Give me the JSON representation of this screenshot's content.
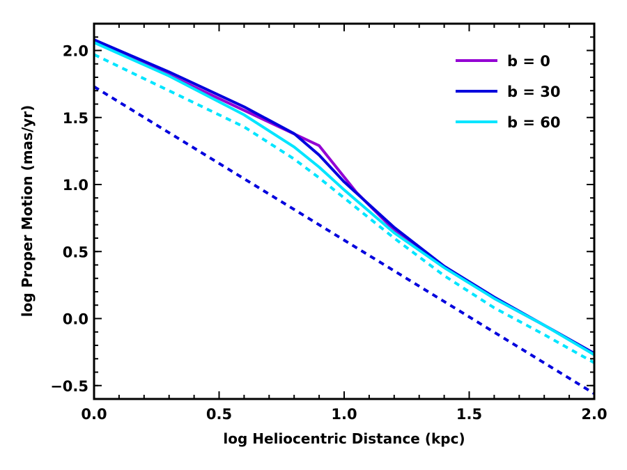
{
  "chart_data": {
    "type": "line",
    "title": "",
    "xlabel": "log Heliocentric Distance (kpc)",
    "ylabel": "log Proper Motion (mas/yr)",
    "xlim": [
      0.0,
      2.0
    ],
    "ylim": [
      -0.6,
      2.2
    ],
    "xticks": [
      0.0,
      0.5,
      1.0,
      1.5,
      2.0
    ],
    "xtick_labels": [
      "0.0",
      "0.5",
      "1.0",
      "1.5",
      "2.0"
    ],
    "yticks": [
      -0.5,
      0.0,
      0.5,
      1.0,
      1.5,
      2.0
    ],
    "ytick_labels": [
      "−0.5",
      "0.0",
      "0.5",
      "1.0",
      "1.5",
      "2.0"
    ],
    "legend_position": "top-right",
    "series": [
      {
        "name": "b = 0",
        "color": "#9400d3",
        "style": "solid",
        "in_legend": true,
        "x": [
          0.0,
          0.9,
          1.05,
          1.2,
          1.4,
          1.6,
          1.8,
          2.0
        ],
        "y": [
          2.08,
          1.29,
          0.94,
          0.66,
          0.39,
          0.15,
          -0.05,
          -0.26
        ]
      },
      {
        "name": "b = 30",
        "color": "#0000dd",
        "style": "solid",
        "in_legend": true,
        "x": [
          0.0,
          0.3,
          0.6,
          0.8,
          0.9,
          1.0,
          1.2,
          1.4,
          1.6,
          1.8,
          2.0
        ],
        "y": [
          2.08,
          1.84,
          1.58,
          1.38,
          1.22,
          1.02,
          0.68,
          0.39,
          0.16,
          -0.05,
          -0.26
        ]
      },
      {
        "name": "b = 60",
        "color": "#00e5ff",
        "style": "solid",
        "in_legend": true,
        "x": [
          0.0,
          0.3,
          0.6,
          0.8,
          0.9,
          1.0,
          1.2,
          1.4,
          1.6,
          1.8,
          2.0
        ],
        "y": [
          2.06,
          1.81,
          1.52,
          1.28,
          1.13,
          0.96,
          0.64,
          0.38,
          0.15,
          -0.05,
          -0.27
        ]
      },
      {
        "name": "b = 60 (dashed)",
        "color": "#00e5ff",
        "style": "dashed",
        "in_legend": false,
        "x": [
          0.0,
          0.3,
          0.6,
          0.8,
          0.9,
          1.0,
          1.2,
          1.4,
          1.6,
          1.8,
          2.0
        ],
        "y": [
          1.97,
          1.7,
          1.43,
          1.19,
          1.05,
          0.9,
          0.6,
          0.32,
          0.08,
          -0.12,
          -0.33
        ]
      },
      {
        "name": "b = 30 (dashed)",
        "color": "#0000dd",
        "style": "dashed",
        "in_legend": false,
        "x": [
          0.0,
          2.0
        ],
        "y": [
          1.73,
          -0.56
        ]
      }
    ]
  }
}
